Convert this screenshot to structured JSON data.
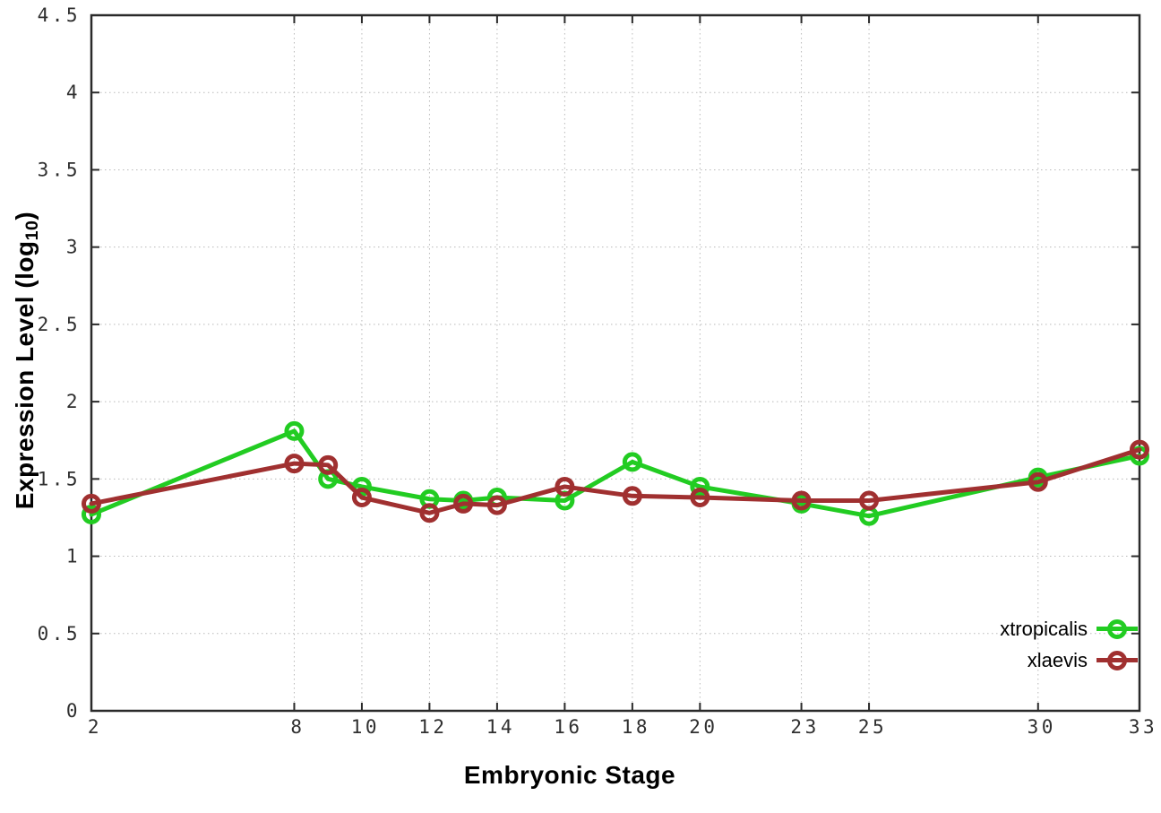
{
  "xlabel": "Embryonic Stage",
  "ylabel_main": "Expression Level (log",
  "ylabel_sub": "10",
  "ylabel_end": ")",
  "legend": [
    {
      "label": "xtropicalis",
      "color": "#22cc22"
    },
    {
      "label": "xlaevis",
      "color": "#a03030"
    }
  ],
  "colors": {
    "xtropicalis": "#22cc22",
    "xlaevis": "#a03030",
    "grid": "#b9b9b9",
    "axis": "#2a2a2a",
    "tick_text": "#2f2f2f"
  },
  "chart_data": {
    "type": "line",
    "title": "",
    "xlabel": "Embryonic Stage",
    "ylabel": "Expression Level (log10)",
    "xlim": [
      2,
      33
    ],
    "ylim": [
      0,
      4.5
    ],
    "grid": true,
    "legend_position": "bottom-right-inside",
    "xticks": [
      {
        "v": 2,
        "label": "2"
      },
      {
        "v": 8,
        "label": "8"
      },
      {
        "v": 10,
        "label": "10"
      },
      {
        "v": 12,
        "label": "12"
      },
      {
        "v": 14,
        "label": "14"
      },
      {
        "v": 16,
        "label": "16"
      },
      {
        "v": 18,
        "label": "18"
      },
      {
        "v": 20,
        "label": "20"
      },
      {
        "v": 23,
        "label": "23"
      },
      {
        "v": 25,
        "label": "25"
      },
      {
        "v": 30,
        "label": "30"
      },
      {
        "v": 33,
        "label": "33"
      }
    ],
    "yticks": [
      {
        "v": 0,
        "label": "0"
      },
      {
        "v": 0.5,
        "label": "0.5"
      },
      {
        "v": 1,
        "label": "1"
      },
      {
        "v": 1.5,
        "label": "1.5"
      },
      {
        "v": 2,
        "label": "2"
      },
      {
        "v": 2.5,
        "label": "2.5"
      },
      {
        "v": 3,
        "label": "3"
      },
      {
        "v": 3.5,
        "label": "3.5"
      },
      {
        "v": 4,
        "label": "4"
      },
      {
        "v": 4.5,
        "label": "4.5"
      }
    ],
    "x": [
      2,
      8,
      9,
      10,
      12,
      13,
      14,
      16,
      18,
      20,
      23,
      25,
      30,
      33
    ],
    "series": [
      {
        "name": "xtropicalis",
        "color": "#22cc22",
        "marker": "open-circle",
        "values": [
          1.27,
          1.81,
          1.5,
          1.45,
          1.37,
          1.36,
          1.38,
          1.36,
          1.61,
          1.45,
          1.34,
          1.26,
          1.51,
          1.65
        ]
      },
      {
        "name": "xlaevis",
        "color": "#a03030",
        "marker": "open-circle",
        "values": [
          1.34,
          1.6,
          1.59,
          1.38,
          1.28,
          1.34,
          1.33,
          1.45,
          1.39,
          1.38,
          1.36,
          1.36,
          1.48,
          1.69
        ]
      }
    ]
  }
}
